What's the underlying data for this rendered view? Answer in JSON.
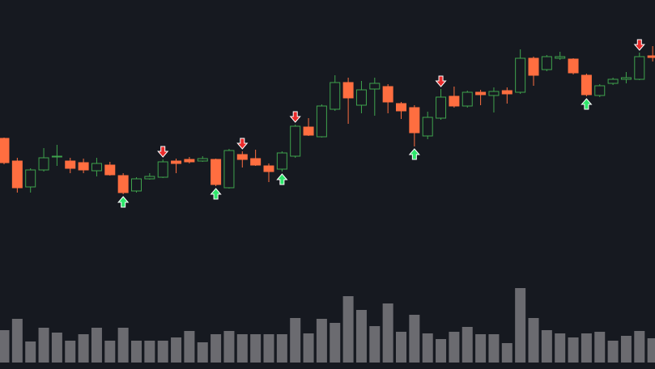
{
  "chart_data": {
    "type": "candlestick",
    "up_color": "#3fa34d",
    "down_color": "#ff6e40",
    "volume_color": "#6b6b70",
    "buy_color": "#2ee66b",
    "sell_color": "#ea2b2b",
    "ylim": [
      156,
      456
    ],
    "volume_ylim": [
      0,
      100
    ],
    "open": [
      285,
      257,
      225,
      246,
      262,
      257,
      255,
      245,
      252,
      239,
      220,
      235,
      237,
      257,
      259,
      257,
      259,
      224,
      265,
      260,
      251,
      247,
      263,
      299,
      287,
      321,
      354,
      326,
      346,
      349,
      328,
      323,
      288,
      310,
      337,
      325,
      342,
      338,
      344,
      342,
      384,
      370,
      384,
      383,
      363,
      338,
      353,
      358,
      358,
      387
    ],
    "high": [
      286,
      261,
      248,
      273,
      277,
      261,
      260,
      261,
      256,
      242,
      237,
      242,
      259,
      260,
      262,
      263,
      260,
      272,
      269,
      271,
      254,
      269,
      302,
      310,
      327,
      363,
      360,
      356,
      360,
      352,
      330,
      326,
      318,
      346,
      349,
      344,
      345,
      348,
      348,
      395,
      386,
      388,
      392,
      384,
      365,
      352,
      360,
      367,
      391,
      399
    ],
    "low": [
      253,
      218,
      218,
      244,
      251,
      242,
      242,
      238,
      239,
      216,
      218,
      234,
      236,
      242,
      254,
      256,
      226,
      223,
      249,
      251,
      231,
      244,
      261,
      288,
      286,
      319,
      303,
      316,
      313,
      316,
      309,
      275,
      284,
      308,
      323,
      323,
      326,
      317,
      328,
      340,
      350,
      368,
      382,
      364,
      337,
      336,
      351,
      353,
      357,
      380
    ],
    "close": [
      255,
      224,
      246,
      261,
      263,
      248,
      246,
      254,
      240,
      218,
      235,
      238,
      256,
      254,
      256,
      260,
      228,
      270,
      259,
      252,
      244,
      267,
      300,
      289,
      325,
      354,
      335,
      345,
      353,
      330,
      319,
      292,
      311,
      336,
      325,
      342,
      339,
      343,
      340,
      384,
      363,
      386,
      386,
      366,
      339,
      350,
      358,
      360,
      386,
      385
    ],
    "volume": [
      40,
      54,
      26,
      43,
      37,
      27,
      35,
      43,
      27,
      43,
      27,
      27,
      27,
      31,
      39,
      25,
      35,
      39,
      35,
      35,
      35,
      35,
      55,
      36,
      54,
      49,
      82,
      65,
      45,
      73,
      38,
      59,
      36,
      29,
      38,
      44,
      35,
      35,
      24,
      92,
      55,
      40,
      36,
      31,
      36,
      38,
      27,
      33,
      39,
      30
    ],
    "buy_signals": [
      9,
      16,
      21,
      31,
      44
    ],
    "sell_signals": [
      12,
      18,
      22,
      33,
      48
    ]
  }
}
